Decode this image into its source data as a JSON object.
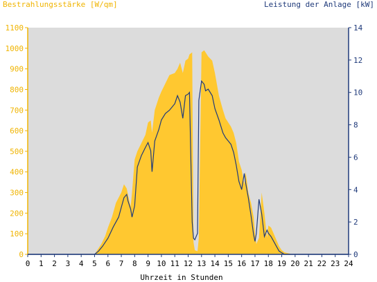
{
  "chart_data": {
    "type": "area",
    "title_left": "Bestrahlungsstärke [W/qm]",
    "title_right": "Leistung der Anlage [kW]",
    "xlabel": "Uhrzeit in Stunden",
    "xlim": [
      0,
      24
    ],
    "ylim_left": [
      0,
      1100
    ],
    "ylim_right": [
      0,
      14
    ],
    "x_ticks": [
      0,
      1,
      2,
      3,
      4,
      5,
      6,
      7,
      8,
      9,
      10,
      11,
      12,
      13,
      14,
      15,
      16,
      17,
      18,
      19,
      20,
      21,
      22,
      23,
      24
    ],
    "y_left_ticks": [
      0,
      100,
      200,
      300,
      400,
      500,
      600,
      700,
      800,
      900,
      1000,
      1100
    ],
    "y_right_ticks": [
      0,
      2,
      4,
      6,
      8,
      10,
      12,
      14
    ],
    "grid": false,
    "colors": {
      "plot_bg": "#dcdcdc",
      "irradiance_fill": "#ffc830",
      "power_line": "#1f3a7a",
      "left_axis": "#f0b400",
      "right_axis": "#1f3a7a"
    },
    "series": [
      {
        "name": "Bestrahlungsstärke",
        "axis": "left",
        "style": "area",
        "x": [
          0,
          5,
          5.2,
          5.5,
          5.8,
          6,
          6.3,
          6.6,
          7,
          7.2,
          7.4,
          7.6,
          7.7,
          7.8,
          8,
          8.2,
          8.5,
          8.8,
          9,
          9.2,
          9.3,
          9.5,
          9.8,
          10,
          10.3,
          10.6,
          11,
          11.2,
          11.4,
          11.6,
          11.8,
          12,
          12.1,
          12.3,
          12.4,
          12.5,
          12.7,
          12.8,
          13,
          13.2,
          13.3,
          13.5,
          13.8,
          14,
          14.3,
          14.6,
          14.8,
          15,
          15.2,
          15.4,
          15.6,
          15.8,
          16,
          16.2,
          16.3,
          16.5,
          16.7,
          16.9,
          17,
          17.1,
          17.3,
          17.5,
          17.7,
          17.9,
          18,
          18.2,
          18.4,
          18.6,
          18.8,
          19,
          19.2,
          19.5,
          19.8,
          20,
          20.2,
          24
        ],
        "y": [
          0,
          0,
          20,
          50,
          90,
          130,
          180,
          250,
          300,
          340,
          320,
          260,
          230,
          300,
          460,
          500,
          540,
          580,
          640,
          650,
          590,
          700,
          760,
          790,
          830,
          870,
          880,
          900,
          930,
          880,
          940,
          950,
          970,
          980,
          60,
          20,
          15,
          80,
          980,
          990,
          980,
          960,
          940,
          880,
          770,
          700,
          660,
          640,
          620,
          590,
          540,
          450,
          410,
          340,
          400,
          300,
          250,
          180,
          100,
          50,
          80,
          300,
          200,
          80,
          140,
          130,
          100,
          70,
          40,
          20,
          10,
          5,
          0,
          0,
          0,
          0
        ]
      },
      {
        "name": "Leistung",
        "axis": "right",
        "style": "line",
        "x": [
          0,
          5,
          5.3,
          5.6,
          6,
          6.4,
          6.8,
          7,
          7.2,
          7.4,
          7.5,
          7.7,
          7.8,
          8,
          8.2,
          8.5,
          8.8,
          9,
          9.2,
          9.3,
          9.5,
          9.8,
          10,
          10.3,
          10.6,
          11,
          11.2,
          11.4,
          11.6,
          11.8,
          12,
          12.1,
          12.3,
          12.4,
          12.5,
          12.7,
          12.8,
          13,
          13.2,
          13.3,
          13.5,
          13.8,
          14,
          14.3,
          14.6,
          14.8,
          15,
          15.2,
          15.4,
          15.6,
          15.8,
          16,
          16.2,
          16.3,
          16.5,
          16.7,
          16.9,
          17,
          17.1,
          17.3,
          17.5,
          17.7,
          17.9,
          18,
          18.2,
          18.4,
          18.6,
          18.8,
          19,
          19.2,
          19.5,
          19.8,
          20,
          24
        ],
        "y": [
          0,
          0,
          0.2,
          0.5,
          1.0,
          1.7,
          2.3,
          2.9,
          3.5,
          3.7,
          3.3,
          2.8,
          2.3,
          3.0,
          5.4,
          6.1,
          6.6,
          6.9,
          6.4,
          5.1,
          7.0,
          7.7,
          8.3,
          8.7,
          8.9,
          9.3,
          9.8,
          9.4,
          8.4,
          9.8,
          9.9,
          10.0,
          2.0,
          1.0,
          0.9,
          1.3,
          9.5,
          10.7,
          10.5,
          10.1,
          10.2,
          9.8,
          9.0,
          8.3,
          7.5,
          7.2,
          7.0,
          6.8,
          6.3,
          5.5,
          4.5,
          4.0,
          5.0,
          4.4,
          3.5,
          2.4,
          1.2,
          0.8,
          1.3,
          3.4,
          2.5,
          1.1,
          1.5,
          1.3,
          1.1,
          0.8,
          0.5,
          0.2,
          0.1,
          0,
          0,
          0,
          0,
          0
        ]
      }
    ]
  }
}
